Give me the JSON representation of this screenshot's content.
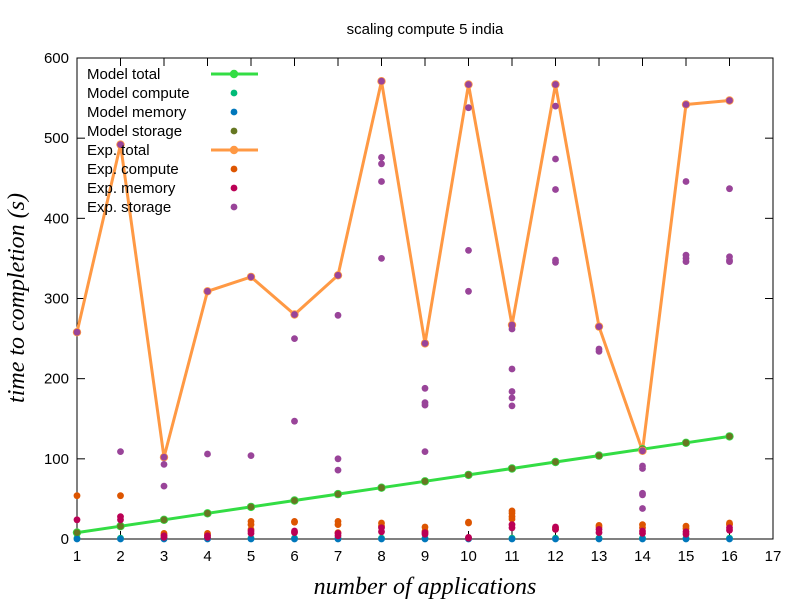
{
  "chart_data": {
    "type": "line",
    "title": "scaling compute 5 india",
    "xlabel": "number of applications",
    "ylabel": "time to completion (s)",
    "xlim": [
      1,
      17
    ],
    "ylim": [
      0,
      600
    ],
    "x_ticks": [
      1,
      2,
      3,
      4,
      5,
      6,
      7,
      8,
      9,
      10,
      11,
      12,
      13,
      14,
      15,
      16,
      17
    ],
    "y_ticks": [
      0,
      100,
      200,
      300,
      400,
      500,
      600
    ],
    "grid": false,
    "legend_position": "top-left",
    "series": [
      {
        "name": "Model total",
        "style": "linespoints",
        "color": "#33dd44",
        "x": [
          1,
          2,
          3,
          4,
          5,
          6,
          7,
          8,
          9,
          10,
          11,
          12,
          13,
          14,
          15,
          16
        ],
        "y": [
          8,
          16,
          24,
          32,
          40,
          48,
          56,
          64,
          72,
          80,
          88,
          96,
          104,
          112,
          120,
          128
        ]
      },
      {
        "name": "Model compute",
        "style": "points",
        "color": "#00bb77",
        "x": [
          1,
          2,
          3,
          4,
          5,
          6,
          7,
          8,
          9,
          10,
          11,
          12,
          13,
          14,
          15,
          16
        ],
        "y": [
          1,
          1,
          1,
          1,
          1,
          1,
          1,
          1,
          1,
          1,
          1,
          1,
          1,
          1,
          1,
          1
        ]
      },
      {
        "name": "Model memory",
        "style": "points",
        "color": "#0077bb",
        "x": [
          1,
          2,
          3,
          4,
          5,
          6,
          7,
          8,
          9,
          10,
          11,
          12,
          13,
          14,
          15,
          16
        ],
        "y": [
          0,
          0,
          0,
          0,
          0,
          0,
          0,
          0,
          0,
          0,
          0,
          0,
          0,
          0,
          0,
          0
        ]
      },
      {
        "name": "Model storage",
        "style": "points",
        "color": "#667722",
        "x": [
          1,
          2,
          3,
          4,
          5,
          6,
          7,
          8,
          9,
          10,
          11,
          12,
          13,
          14,
          15,
          16
        ],
        "y": [
          8,
          16,
          24,
          32,
          40,
          48,
          56,
          64,
          72,
          80,
          88,
          96,
          104,
          112,
          120,
          128
        ]
      },
      {
        "name": "Exp. total",
        "style": "linespoints",
        "color": "#ff9944",
        "x": [
          1,
          2,
          3,
          4,
          5,
          6,
          7,
          8,
          9,
          10,
          11,
          12,
          13,
          14,
          15,
          16
        ],
        "y": [
          258,
          492,
          102,
          309,
          327,
          280,
          329,
          571,
          244,
          567,
          267,
          567,
          265,
          110,
          542,
          547
        ]
      },
      {
        "name": "Exp.  compute",
        "style": "points",
        "color": "#dd5500",
        "x": [
          1,
          2,
          3,
          3,
          4,
          4,
          5,
          5,
          5,
          6,
          6,
          7,
          7,
          7,
          8,
          8,
          9,
          9,
          10,
          10,
          11,
          11,
          11,
          11,
          12,
          12,
          13,
          13,
          14,
          14,
          15,
          15,
          16,
          16
        ],
        "y": [
          54,
          54,
          7,
          5,
          7,
          5,
          22,
          18,
          12,
          22,
          21,
          22,
          18,
          8,
          20,
          16,
          15,
          10,
          21,
          20,
          35,
          32,
          28,
          25,
          14,
          12,
          17,
          15,
          18,
          14,
          16,
          13,
          20,
          18
        ]
      },
      {
        "name": "Exp.  memory",
        "style": "points",
        "color": "#bb0055",
        "x": [
          1,
          2,
          2,
          3,
          3,
          4,
          4,
          5,
          5,
          6,
          6,
          7,
          7,
          8,
          8,
          9,
          9,
          10,
          10,
          11,
          11,
          12,
          12,
          13,
          13,
          14,
          14,
          15,
          15,
          16,
          16
        ],
        "y": [
          24,
          28,
          24,
          4,
          2,
          4,
          2,
          10,
          7,
          10,
          8,
          7,
          4,
          14,
          9,
          8,
          6,
          2,
          1,
          18,
          14,
          15,
          12,
          12,
          8,
          10,
          7,
          9,
          6,
          14,
          11
        ]
      },
      {
        "name": "Exp.  storage",
        "style": "points",
        "color": "#994499",
        "x": [
          1,
          2,
          2,
          3,
          3,
          3,
          4,
          4,
          5,
          5,
          6,
          6,
          6,
          7,
          7,
          7,
          7,
          8,
          8,
          8,
          8,
          8,
          9,
          9,
          9,
          9,
          9,
          10,
          10,
          10,
          10,
          11,
          11,
          11,
          11,
          11,
          11,
          12,
          12,
          12,
          12,
          12,
          12,
          13,
          13,
          13,
          14,
          14,
          14,
          14,
          14,
          14,
          15,
          15,
          15,
          15,
          15,
          16,
          16,
          16,
          16,
          16
        ],
        "y": [
          258,
          492,
          109,
          102,
          93,
          66,
          309,
          106,
          327,
          104,
          280,
          250,
          147,
          329,
          279,
          100,
          86,
          571,
          476,
          468,
          446,
          350,
          244,
          188,
          170,
          167,
          109,
          567,
          538,
          360,
          309,
          267,
          262,
          212,
          184,
          176,
          166,
          567,
          540,
          474,
          436,
          348,
          345,
          265,
          237,
          234,
          110,
          91,
          88,
          57,
          55,
          38,
          542,
          446,
          354,
          350,
          346,
          547,
          437,
          352,
          348,
          346
        ]
      }
    ]
  }
}
